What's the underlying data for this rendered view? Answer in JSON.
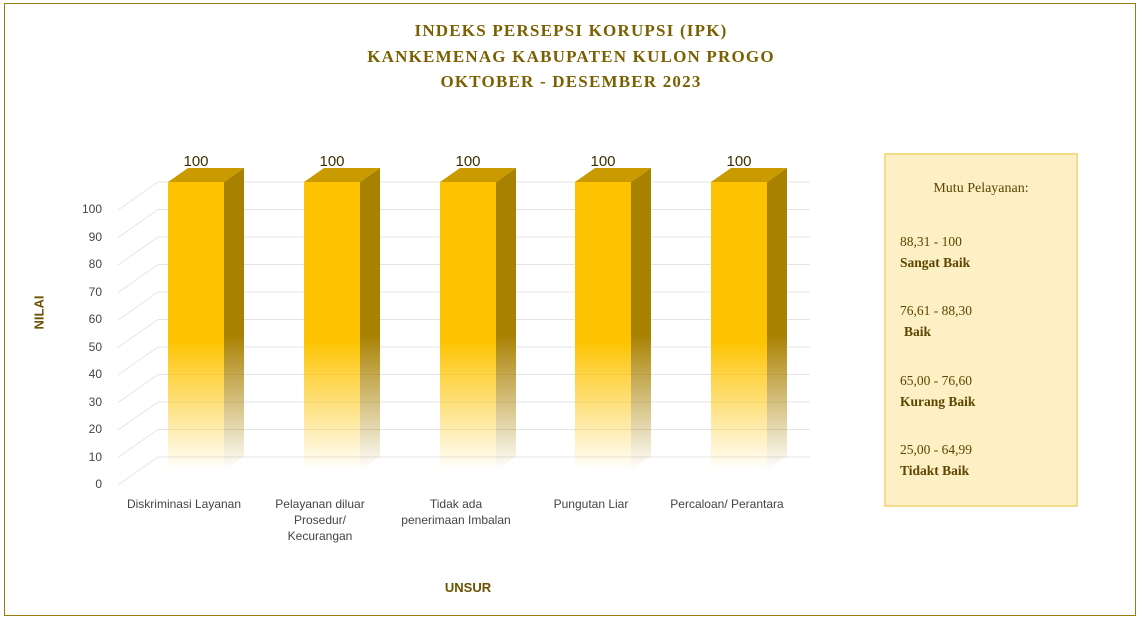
{
  "chart_data": {
    "type": "bar",
    "title_lines": [
      "INDEKS PERSEPSI KORUPSI (IPK)",
      "KANKEMENAG KABUPATEN KULON PROGO",
      "OKTOBER - DESEMBER 2023"
    ],
    "xlabel": "UNSUR",
    "ylabel": "NILAI",
    "ylim": [
      0,
      100
    ],
    "yticks": [
      "0",
      "10",
      "20",
      "30",
      "40",
      "50",
      "60",
      "70",
      "80",
      "90",
      "100"
    ],
    "categories": [
      "Diskriminasi Layanan",
      "Pelayanan diluar Prosedur/ Kecurangan",
      "Tidak ada penerimaan Imbalan",
      "Pungutan Liar",
      "Percaloan/ Perantara"
    ],
    "category_lines": [
      [
        "Diskriminasi Layanan"
      ],
      [
        "Pelayanan diluar",
        "Prosedur/",
        "Kecurangan"
      ],
      [
        "Tidak ada",
        "penerimaan Imbalan"
      ],
      [
        "Pungutan Liar"
      ],
      [
        "Percaloan/ Perantara"
      ]
    ],
    "values": [
      100,
      100,
      100,
      100,
      100
    ],
    "data_labels": [
      "100",
      "100",
      "100",
      "100",
      "100"
    ],
    "grid": true,
    "style": "3d-gradient",
    "bar_color": "#fdc300",
    "bar_side_color": "#b08700"
  },
  "legend": {
    "title": "Mutu Pelayanan:",
    "items": [
      {
        "range": "88,31 - 100",
        "category": "Sangat Baik"
      },
      {
        "range": "76,61 - 88,30",
        "category": "Baik"
      },
      {
        "range": "65,00 - 76,60",
        "category": "Kurang Baik"
      },
      {
        "range": "25,00 - 64,99",
        "category": "Tidakt Baik"
      }
    ]
  },
  "colors": {
    "title": "#7a6000",
    "frame": "#9a7d10",
    "legend_bg": "#fdf0c4"
  }
}
